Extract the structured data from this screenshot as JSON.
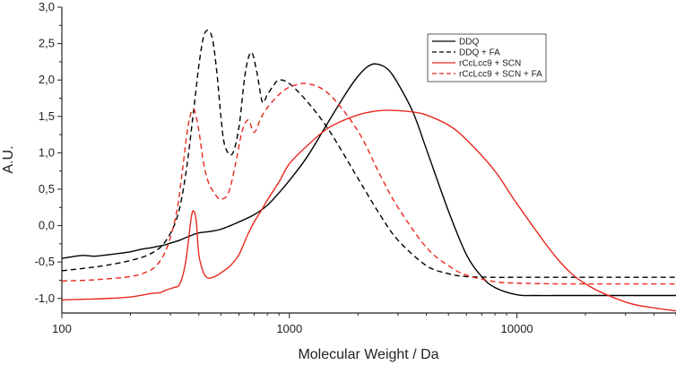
{
  "chart_data": {
    "type": "line",
    "title": "",
    "xlabel": "Molecular Weight / Da",
    "ylabel": "A.U.",
    "xscale": "log",
    "xlim": [
      100,
      50000
    ],
    "ylim": [
      -1.2,
      3.0
    ],
    "x_ticks": [
      100,
      1000,
      10000
    ],
    "x_tick_labels": [
      "100",
      "1000",
      "10000"
    ],
    "y_ticks": [
      -1.0,
      -0.5,
      0.0,
      0.5,
      1.0,
      1.5,
      2.0,
      2.5,
      3.0
    ],
    "y_tick_labels": [
      "-1,0",
      "-0,5",
      "0,0",
      "0,5",
      "1,0",
      "1,5",
      "2,0",
      "2,5",
      "3,0"
    ],
    "grid": false,
    "legend_position": "top-right",
    "series": [
      {
        "name": "DDQ",
        "color": "#000000",
        "dash": "solid",
        "x": [
          100,
          115,
          125,
          140,
          160,
          180,
          200,
          220,
          250,
          280,
          300,
          330,
          360,
          400,
          450,
          500,
          550,
          600,
          700,
          800,
          900,
          1000,
          1200,
          1500,
          1800,
          2000,
          2200,
          2400,
          2700,
          3000,
          3500,
          4000,
          5000,
          6000,
          7000,
          8000,
          10000,
          12000,
          15000,
          20000,
          30000,
          50000
        ],
        "y": [
          -0.45,
          -0.42,
          -0.41,
          -0.42,
          -0.4,
          -0.38,
          -0.36,
          -0.33,
          -0.3,
          -0.27,
          -0.24,
          -0.2,
          -0.15,
          -0.1,
          -0.08,
          -0.05,
          0.0,
          0.05,
          0.15,
          0.28,
          0.45,
          0.62,
          0.95,
          1.45,
          1.85,
          2.05,
          2.18,
          2.22,
          2.15,
          1.95,
          1.55,
          1.05,
          0.2,
          -0.4,
          -0.7,
          -0.85,
          -0.95,
          -0.96,
          -0.96,
          -0.96,
          -0.96,
          -0.96
        ]
      },
      {
        "name": "DDQ + FA",
        "color": "#000000",
        "dash": "dashed",
        "x": [
          100,
          130,
          160,
          200,
          240,
          280,
          320,
          350,
          380,
          400,
          420,
          440,
          460,
          480,
          500,
          520,
          560,
          600,
          640,
          680,
          720,
          760,
          800,
          850,
          900,
          1000,
          1200,
          1500,
          2000,
          2500,
          3000,
          4000,
          5000,
          6000,
          8000,
          10000,
          15000,
          20000,
          30000,
          50000
        ],
        "y": [
          -0.62,
          -0.58,
          -0.54,
          -0.48,
          -0.4,
          -0.25,
          0.1,
          0.7,
          1.6,
          2.2,
          2.6,
          2.68,
          2.55,
          2.1,
          1.5,
          1.1,
          0.98,
          1.35,
          2.1,
          2.38,
          2.1,
          1.7,
          1.8,
          1.92,
          2.0,
          1.95,
          1.7,
          1.3,
          0.65,
          0.15,
          -0.2,
          -0.55,
          -0.66,
          -0.7,
          -0.71,
          -0.71,
          -0.71,
          -0.71,
          -0.71,
          -0.71
        ]
      },
      {
        "name": "rCcLcc9 + SCN",
        "color": "#e8281e",
        "dash": "solid",
        "x": [
          100,
          130,
          160,
          200,
          230,
          250,
          270,
          290,
          310,
          330,
          350,
          370,
          380,
          390,
          400,
          420,
          440,
          470,
          500,
          550,
          600,
          650,
          700,
          750,
          800,
          900,
          1000,
          1200,
          1500,
          2000,
          2500,
          3000,
          3500,
          4000,
          5000,
          6000,
          8000,
          10000,
          15000,
          20000,
          30000,
          40000,
          50000
        ],
        "y": [
          -1.02,
          -1.01,
          -1.0,
          -0.98,
          -0.95,
          -0.93,
          -0.92,
          -0.88,
          -0.85,
          -0.8,
          -0.5,
          0.1,
          0.2,
          0.05,
          -0.4,
          -0.65,
          -0.72,
          -0.7,
          -0.65,
          -0.55,
          -0.4,
          -0.15,
          0.05,
          0.2,
          0.35,
          0.6,
          0.85,
          1.1,
          1.35,
          1.52,
          1.58,
          1.58,
          1.56,
          1.52,
          1.38,
          1.18,
          0.75,
          0.3,
          -0.45,
          -0.8,
          -1.05,
          -1.13,
          -1.17
        ]
      },
      {
        "name": "rCcLcc9 + SCN + FA",
        "color": "#e8281e",
        "dash": "dashed",
        "x": [
          100,
          130,
          160,
          200,
          230,
          260,
          290,
          320,
          340,
          360,
          380,
          400,
          420,
          440,
          460,
          480,
          500,
          540,
          580,
          620,
          660,
          700,
          750,
          800,
          900,
          1000,
          1200,
          1500,
          2000,
          2500,
          3000,
          4000,
          5000,
          6000,
          8000,
          10000,
          15000,
          20000,
          30000,
          50000
        ],
        "y": [
          -0.76,
          -0.75,
          -0.73,
          -0.7,
          -0.65,
          -0.55,
          -0.3,
          0.2,
          0.8,
          1.4,
          1.6,
          1.3,
          0.85,
          0.6,
          0.48,
          0.4,
          0.36,
          0.45,
          0.85,
          1.3,
          1.45,
          1.28,
          1.48,
          1.62,
          1.8,
          1.9,
          1.95,
          1.8,
          1.3,
          0.7,
          0.25,
          -0.3,
          -0.55,
          -0.68,
          -0.77,
          -0.79,
          -0.8,
          -0.8,
          -0.8,
          -0.8
        ]
      }
    ]
  }
}
